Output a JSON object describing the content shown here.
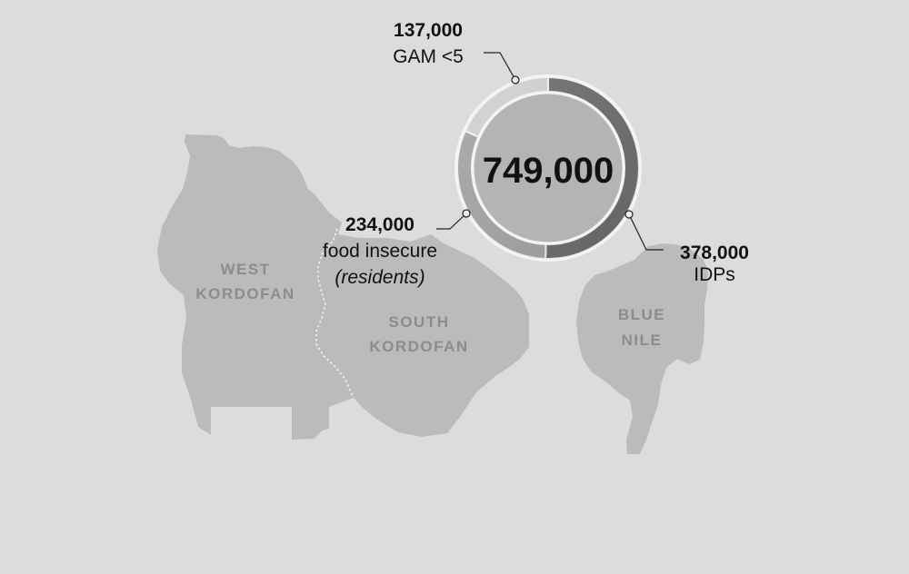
{
  "regions": {
    "west_kordofan": [
      "WEST",
      "KORDOFAN"
    ],
    "south_kordofan": [
      "SOUTH",
      "KORDOFAN"
    ],
    "blue_nile": [
      "BLUE",
      "NILE"
    ]
  },
  "chart_data": {
    "type": "pie",
    "total_label": "749,000",
    "total": 749000,
    "slices": [
      {
        "value_label": "378,000",
        "value": 378000,
        "label": "IDPs",
        "sublabel": "",
        "color": "#6e6e6e"
      },
      {
        "value_label": "234,000",
        "value": 234000,
        "label": "food insecure",
        "sublabel": "(residents)",
        "color": "#a6a6a6"
      },
      {
        "value_label": "137,000",
        "value": 137000,
        "label": "GAM <5",
        "sublabel": "",
        "color": "#d2d2d2"
      }
    ],
    "colors": {
      "region_fill": "#bbbbbb",
      "background": "#dcdcdc",
      "inner_disc": "#b4b4b4",
      "ring_outline": "#f4f4f4"
    }
  }
}
